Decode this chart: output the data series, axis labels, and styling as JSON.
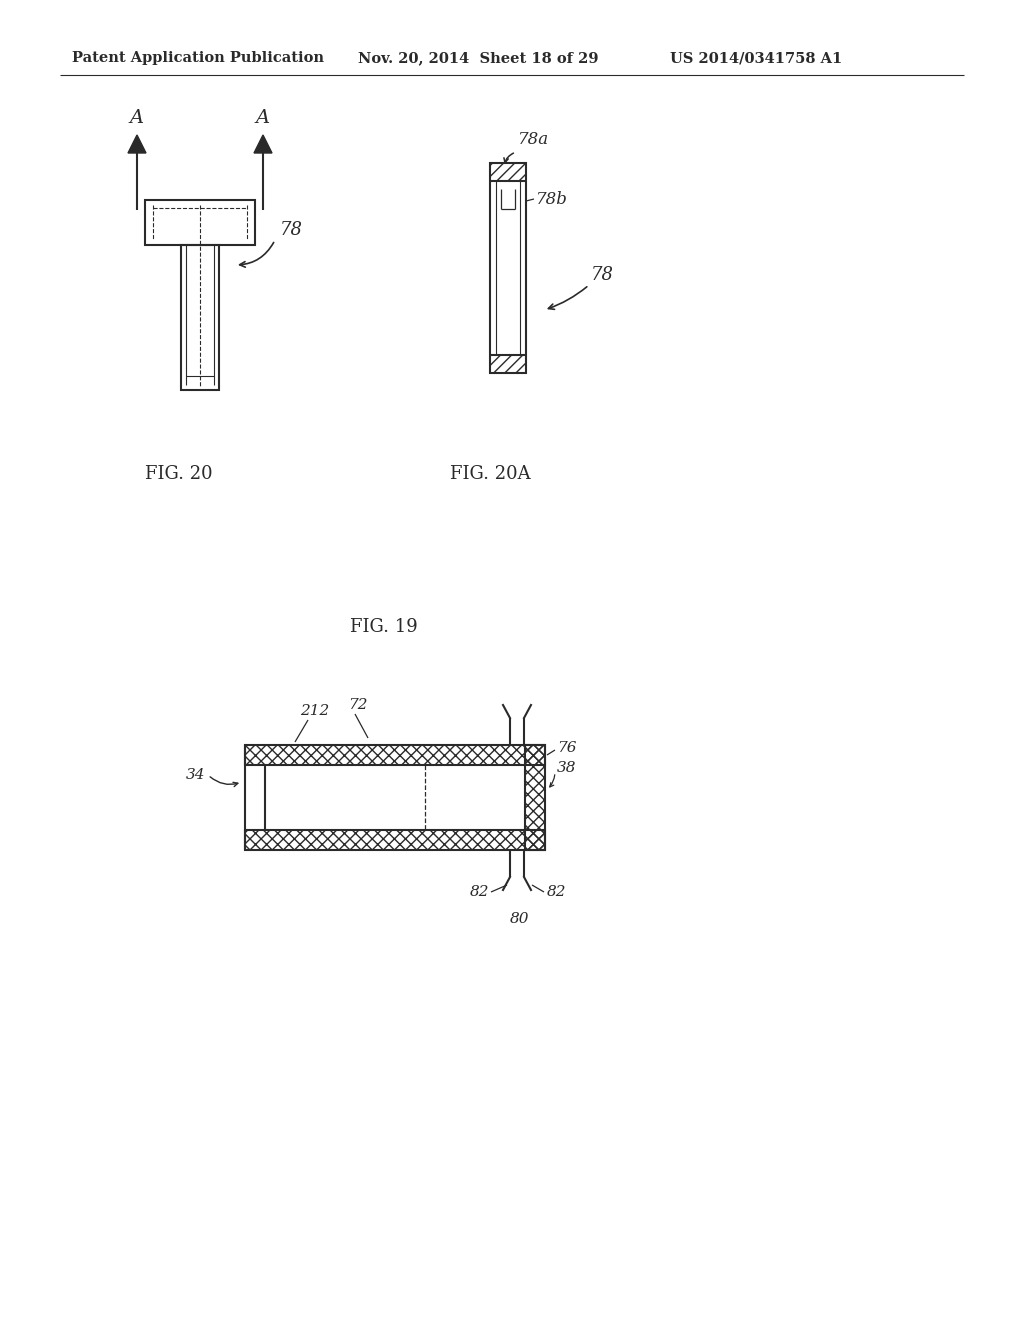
{
  "header_left": "Patent Application Publication",
  "header_mid": "Nov. 20, 2014  Sheet 18 of 29",
  "header_right": "US 2014/0341758 A1",
  "fig20_label": "FIG. 20",
  "fig20a_label": "FIG. 20A",
  "fig19_label": "FIG. 19",
  "bg_color": "#ffffff",
  "line_color": "#2a2a2a"
}
